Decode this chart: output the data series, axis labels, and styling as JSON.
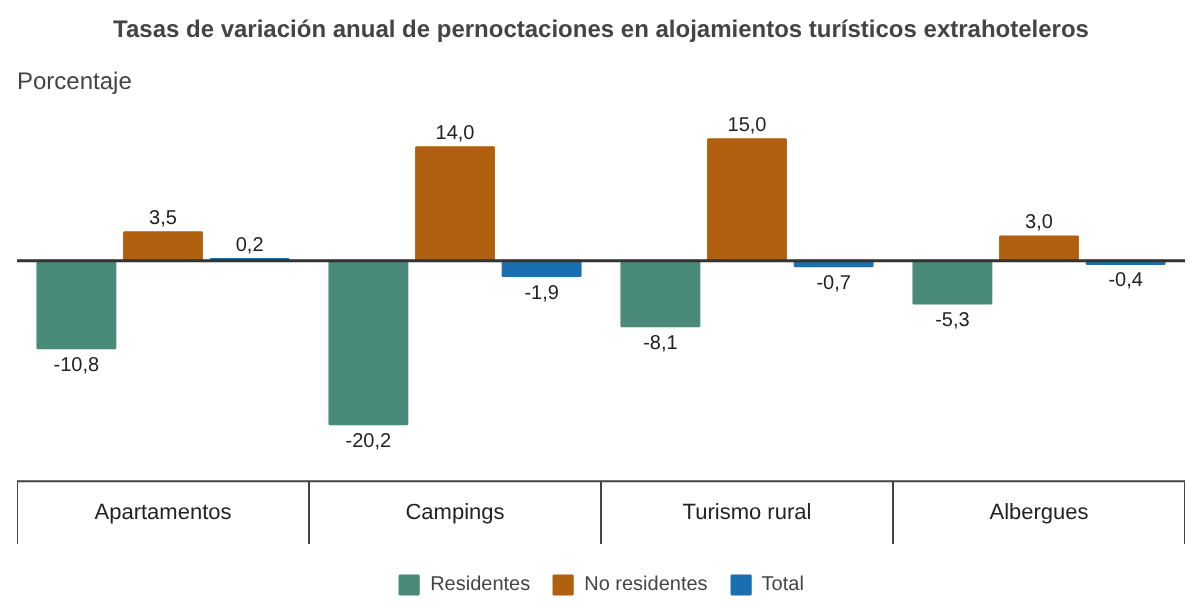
{
  "chart_data": {
    "type": "bar",
    "title": "Tasas de variación anual de pernoctaciones en alojamientos turísticos extrahoteleros",
    "ylabel": "Porcentaje",
    "categories": [
      "Apartamentos",
      "Campings",
      "Turismo rural",
      "Albergues"
    ],
    "series": [
      {
        "name": "Residentes",
        "color": "#4a8a7a",
        "values": [
          -10.8,
          -20.2,
          -8.1,
          -5.3
        ],
        "value_labels": [
          "-10,8",
          "-20,2",
          "-8,1",
          "-5,3"
        ]
      },
      {
        "name": "No residentes",
        "color": "#b0600f",
        "values": [
          3.5,
          14.0,
          15.0,
          3.0
        ],
        "value_labels": [
          "3,5",
          "14,0",
          "15,0",
          "3,0"
        ]
      },
      {
        "name": "Total",
        "color": "#1a6fb0",
        "values": [
          0.2,
          -1.9,
          -0.7,
          -0.4
        ],
        "value_labels": [
          "0,2",
          "-1,9",
          "-0,7",
          "-0,4"
        ]
      }
    ],
    "legend": "bottom"
  }
}
